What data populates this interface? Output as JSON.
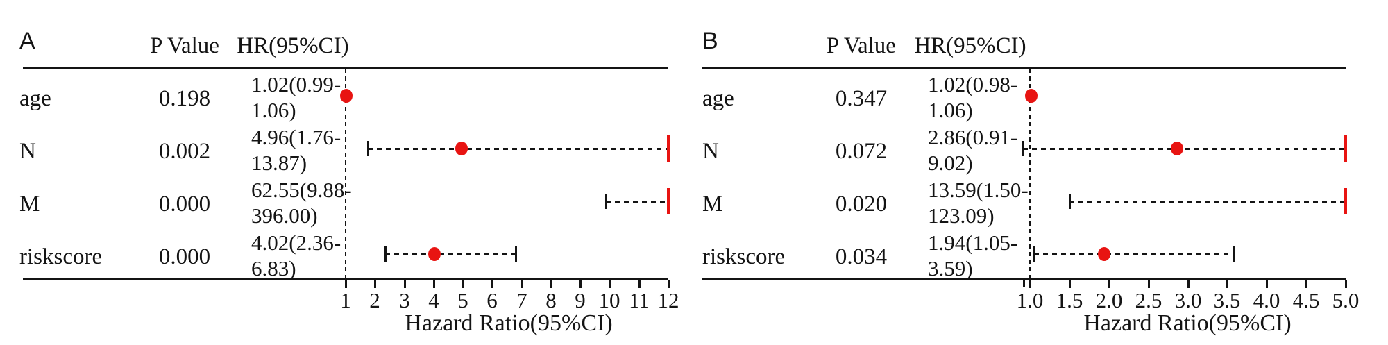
{
  "colors": {
    "marker_red": "#e81412",
    "ink_black": "#141414"
  },
  "figure": {
    "column_header_p": "P Value",
    "column_header_hr": "HR(95%CI)",
    "axis_title": "Hazard Ratio(95%CI)"
  },
  "chart_data": [
    {
      "type": "scatter",
      "subtype": "forest-plot",
      "panel_label": "A",
      "xlabel": "Hazard Ratio(95%CI)",
      "columns": {
        "p": "P Value",
        "hr": "HR(95%CI)"
      },
      "reference_line": 1,
      "xlim": [
        0.9,
        12
      ],
      "x_ticks": [
        1,
        2,
        3,
        4,
        5,
        6,
        7,
        8,
        9,
        10,
        11,
        12
      ],
      "x_tick_labels": [
        "1",
        "2",
        "3",
        "4",
        "5",
        "6",
        "7",
        "8",
        "9",
        "10",
        "11",
        "12"
      ],
      "grid": false,
      "legend": false,
      "rows": [
        {
          "variable": "age",
          "p_value": "0.198",
          "hr_text": [
            "1.02(0.99-",
            "1.06)"
          ],
          "hr": 1.02,
          "ci_low": 0.99,
          "ci_high": 1.06,
          "ci_high_offscale": false,
          "hr_offscale": false
        },
        {
          "variable": "N",
          "p_value": "0.002",
          "hr_text": [
            "4.96(1.76-",
            "13.87)"
          ],
          "hr": 4.96,
          "ci_low": 1.76,
          "ci_high": 13.87,
          "ci_high_offscale": true,
          "hr_offscale": false
        },
        {
          "variable": "M",
          "p_value": "0.000",
          "hr_text": [
            "62.55(9.88-",
            "396.00)"
          ],
          "hr": 62.55,
          "ci_low": 9.88,
          "ci_high": 396.0,
          "ci_high_offscale": true,
          "hr_offscale": true
        },
        {
          "variable": "riskscore",
          "p_value": "0.000",
          "hr_text": [
            "4.02(2.36-",
            "6.83)"
          ],
          "hr": 4.02,
          "ci_low": 2.36,
          "ci_high": 6.83,
          "ci_high_offscale": false,
          "hr_offscale": false
        }
      ]
    },
    {
      "type": "scatter",
      "subtype": "forest-plot",
      "panel_label": "B",
      "xlabel": "Hazard Ratio(95%CI)",
      "columns": {
        "p": "P Value",
        "hr": "HR(95%CI)"
      },
      "reference_line": 1,
      "xlim": [
        0.92,
        5.0
      ],
      "x_ticks": [
        1.0,
        1.5,
        2.0,
        2.5,
        3.0,
        3.5,
        4.0,
        4.5,
        5.0
      ],
      "x_tick_labels": [
        "1.0",
        "1.5",
        "2.0",
        "2.5",
        "3.0",
        "3.5",
        "4.0",
        "4.5",
        "5.0"
      ],
      "grid": false,
      "legend": false,
      "rows": [
        {
          "variable": "age",
          "p_value": "0.347",
          "hr_text": [
            "1.02(0.98-",
            "1.06)"
          ],
          "hr": 1.02,
          "ci_low": 0.98,
          "ci_high": 1.06,
          "ci_high_offscale": false,
          "hr_offscale": false
        },
        {
          "variable": "N",
          "p_value": "0.072",
          "hr_text": [
            "2.86(0.91-",
            "9.02)"
          ],
          "hr": 2.86,
          "ci_low": 0.91,
          "ci_high": 9.02,
          "ci_high_offscale": true,
          "hr_offscale": false
        },
        {
          "variable": "M",
          "p_value": "0.020",
          "hr_text": [
            "13.59(1.50-",
            "123.09)"
          ],
          "hr": 13.59,
          "ci_low": 1.5,
          "ci_high": 123.09,
          "ci_high_offscale": true,
          "hr_offscale": true
        },
        {
          "variable": "riskscore",
          "p_value": "0.034",
          "hr_text": [
            "1.94(1.05-",
            "3.59)"
          ],
          "hr": 1.94,
          "ci_low": 1.05,
          "ci_high": 3.59,
          "ci_high_offscale": false,
          "hr_offscale": false
        }
      ]
    }
  ]
}
